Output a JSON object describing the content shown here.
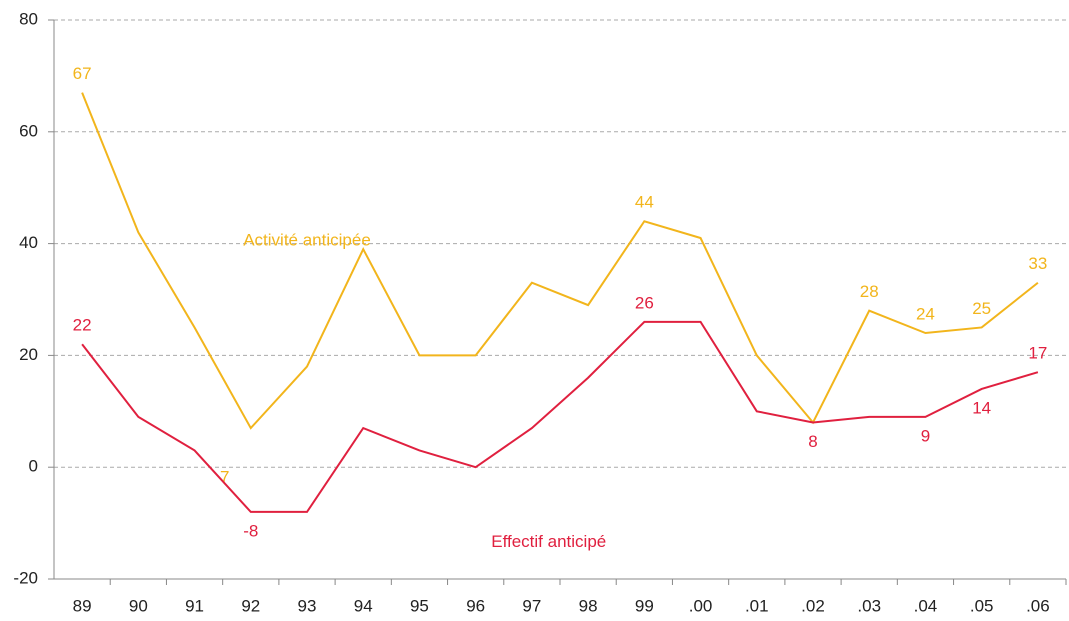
{
  "chart_data": {
    "type": "line",
    "categories": [
      "89",
      "90",
      "91",
      "92",
      "93",
      "94",
      "95",
      "96",
      "97",
      "98",
      "99",
      ".00",
      ".01",
      ".02",
      ".03",
      ".04",
      ".05",
      ".06"
    ],
    "series": [
      {
        "name": "Activité anticipée",
        "color": "#f2b51c",
        "values": [
          67,
          42,
          25,
          7,
          18,
          39,
          20,
          20,
          33,
          29,
          44,
          41,
          20,
          8,
          28,
          24,
          25,
          33
        ],
        "value_labels": [
          "67",
          null,
          null,
          "7",
          null,
          null,
          null,
          null,
          null,
          null,
          "44",
          null,
          null,
          null,
          "28",
          "24",
          "25",
          "33"
        ]
      },
      {
        "name": "Effectif anticipé",
        "color": "#e0203f",
        "values": [
          22,
          9,
          3,
          -8,
          -8,
          7,
          3,
          0,
          7,
          16,
          26,
          26,
          10,
          8,
          9,
          9,
          14,
          17
        ],
        "value_labels": [
          "22",
          null,
          null,
          "-8",
          null,
          null,
          null,
          null,
          null,
          null,
          "26",
          null,
          null,
          "8",
          null,
          "9",
          "14",
          "17"
        ]
      }
    ],
    "ylim": [
      -20,
      80
    ],
    "yticks": [
      -20,
      0,
      20,
      40,
      60,
      80
    ],
    "grid": true
  }
}
